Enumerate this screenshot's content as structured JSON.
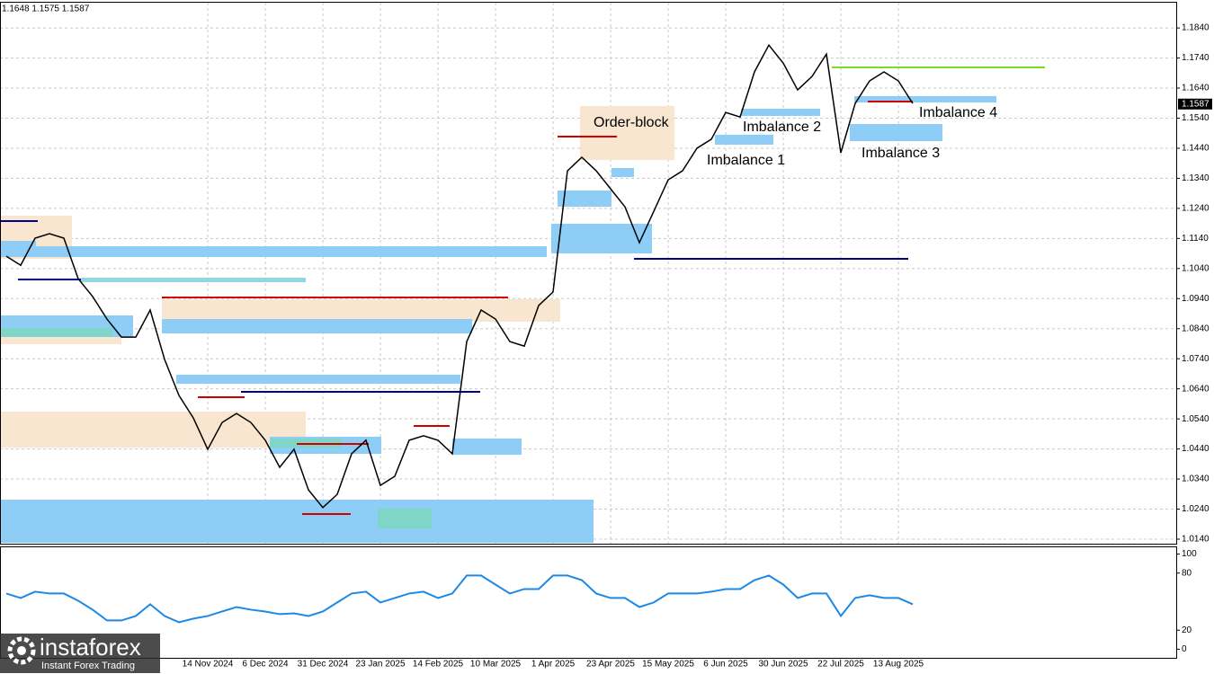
{
  "header": "1.1648 1.1575 1.1587",
  "watermark": {
    "brand": "instaforex",
    "tagline": "Instant Forex Trading"
  },
  "chart_data": [
    {
      "type": "line",
      "color": "#000000",
      "categories": [
        null,
        null,
        null,
        null,
        null,
        null,
        null,
        null,
        null,
        null,
        null,
        null,
        null,
        null,
        "14 Nov 2024",
        null,
        null,
        null,
        "6 Dec 2024",
        null,
        null,
        null,
        "31 Dec 2024",
        null,
        null,
        null,
        "23 Jan 2025",
        null,
        null,
        null,
        "14 Feb 2025",
        null,
        null,
        null,
        "10 Mar 2025",
        null,
        null,
        null,
        "1 Apr 2025",
        null,
        null,
        null,
        "23 Apr 2025",
        null,
        null,
        null,
        "15 May 2025",
        null,
        null,
        null,
        "6 Jun 2025",
        null,
        null,
        null,
        "30 Jun 2025",
        null,
        null,
        null,
        "22 Jul 2025",
        null,
        null,
        null,
        "13 Aug 2025",
        null
      ],
      "values": [
        1.1081,
        1.1051,
        1.1141,
        1.1156,
        1.1141,
        1.1006,
        1.0947,
        1.0872,
        1.0812,
        1.0812,
        1.0902,
        1.0738,
        1.0618,
        1.0543,
        1.0439,
        1.0528,
        1.0558,
        1.0528,
        1.0469,
        1.0379,
        1.0439,
        1.0304,
        1.0245,
        1.0289,
        1.0424,
        1.0469,
        1.0319,
        1.0349,
        1.0469,
        1.0484,
        1.0469,
        1.0424,
        1.0797,
        1.0902,
        1.0872,
        1.0797,
        1.0782,
        1.0917,
        1.0962,
        1.1365,
        1.141,
        1.1365,
        1.1305,
        1.1245,
        1.1126,
        1.123,
        1.1335,
        1.1365,
        1.144,
        1.147,
        1.1559,
        1.1544,
        1.1694,
        1.1783,
        1.1723,
        1.1634,
        1.1679,
        1.1753,
        1.1425,
        1.1589,
        1.1664,
        1.1694,
        1.1664,
        1.1589
      ],
      "ylim": [
        1.0125,
        1.1924
      ],
      "yticks": [
        {
          "value": 1.184,
          "label": "1.1840"
        },
        {
          "value": 1.174,
          "label": "1.1740"
        },
        {
          "value": 1.164,
          "label": "1.1640"
        },
        {
          "value": 1.154,
          "label": "1.1540"
        },
        {
          "value": 1.144,
          "label": "1.1440"
        },
        {
          "value": 1.134,
          "label": "1.1340"
        },
        {
          "value": 1.124,
          "label": "1.1240"
        },
        {
          "value": 1.114,
          "label": "1.1140"
        },
        {
          "value": 1.104,
          "label": "1.1040"
        },
        {
          "value": 1.094,
          "label": "1.0940"
        },
        {
          "value": 1.084,
          "label": "1.0840"
        },
        {
          "value": 1.074,
          "label": "1.0740"
        },
        {
          "value": 1.064,
          "label": "1.0640"
        },
        {
          "value": 1.054,
          "label": "1.0540"
        },
        {
          "value": 1.044,
          "label": "1.0440"
        },
        {
          "value": 1.034,
          "label": "1.0340"
        },
        {
          "value": 1.024,
          "label": "1.0240"
        },
        {
          "value": 1.014,
          "label": "1.0140"
        }
      ],
      "current_price": {
        "value": 1.1587,
        "label": "1.1587"
      },
      "grid": true,
      "annotations": [
        "Order-block",
        "Imbalance 1",
        "Imbalance 2",
        "Imbalance 3",
        "Imbalance 4"
      ]
    },
    {
      "type": "line",
      "color": "#1e88e5",
      "values": [
        58.5,
        53.8,
        60.4,
        58.5,
        58.5,
        50.9,
        41.5,
        30.2,
        30.2,
        34.9,
        47.2,
        34.9,
        28.3,
        32.1,
        34.9,
        39.6,
        44.3,
        41.5,
        39.6,
        36.8,
        37.7,
        34.9,
        39.6,
        49.1,
        58.5,
        60.4,
        49.1,
        53.8,
        58.5,
        60.4,
        53.8,
        58.5,
        77.4,
        77.4,
        67.9,
        58.5,
        63.2,
        63.2,
        77.4,
        77.4,
        72.6,
        58.5,
        53.8,
        53.8,
        44.3,
        49.1,
        58.5,
        58.5,
        58.5,
        60.4,
        63.2,
        63.2,
        72.6,
        77.4,
        67.9,
        53.8,
        58.5,
        58.5,
        34.9,
        53.8,
        56.6,
        53.8,
        53.8,
        47.2
      ],
      "ylim": [
        -10,
        108
      ],
      "yticks": [
        100,
        80,
        20,
        0
      ]
    }
  ]
}
